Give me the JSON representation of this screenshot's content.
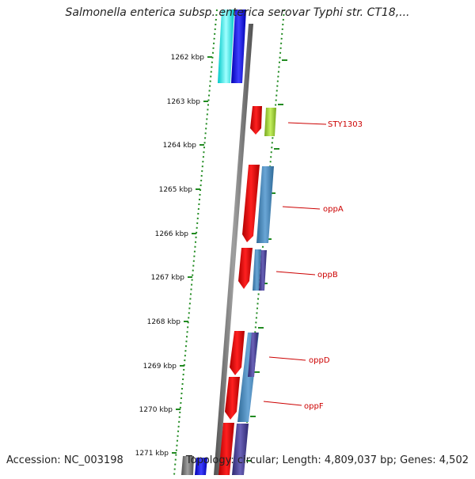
{
  "title": "Salmonella enterica subsp. enterica serovar Typhi str. CT18,...",
  "footer": {
    "accession": "Accession: NC_003198",
    "topology": "Topology: circular; Length: 4,809,037 bp; Genes: 4,502"
  },
  "ticks": [
    "1262 kbp",
    "1263 kbp",
    "1264 kbp",
    "1265 kbp",
    "1266 kbp",
    "1267 kbp",
    "1268 kbp",
    "1269 kbp",
    "1270 kbp",
    "1271 kbp"
  ],
  "gene_labels": [
    "STY1303",
    "oppA",
    "oppB",
    "oppD",
    "oppF"
  ],
  "colors": {
    "forward_strand": "#ff0000",
    "cds_blue": "#4682b4",
    "cds_green": "#9acd32",
    "cds_cyan": "#00ffff",
    "cds_darkblue": "#0000ff",
    "cds_purple": "#483d8b",
    "backbone": "#808080",
    "tick_green": "#228b22",
    "label_red": "#cc0000"
  }
}
